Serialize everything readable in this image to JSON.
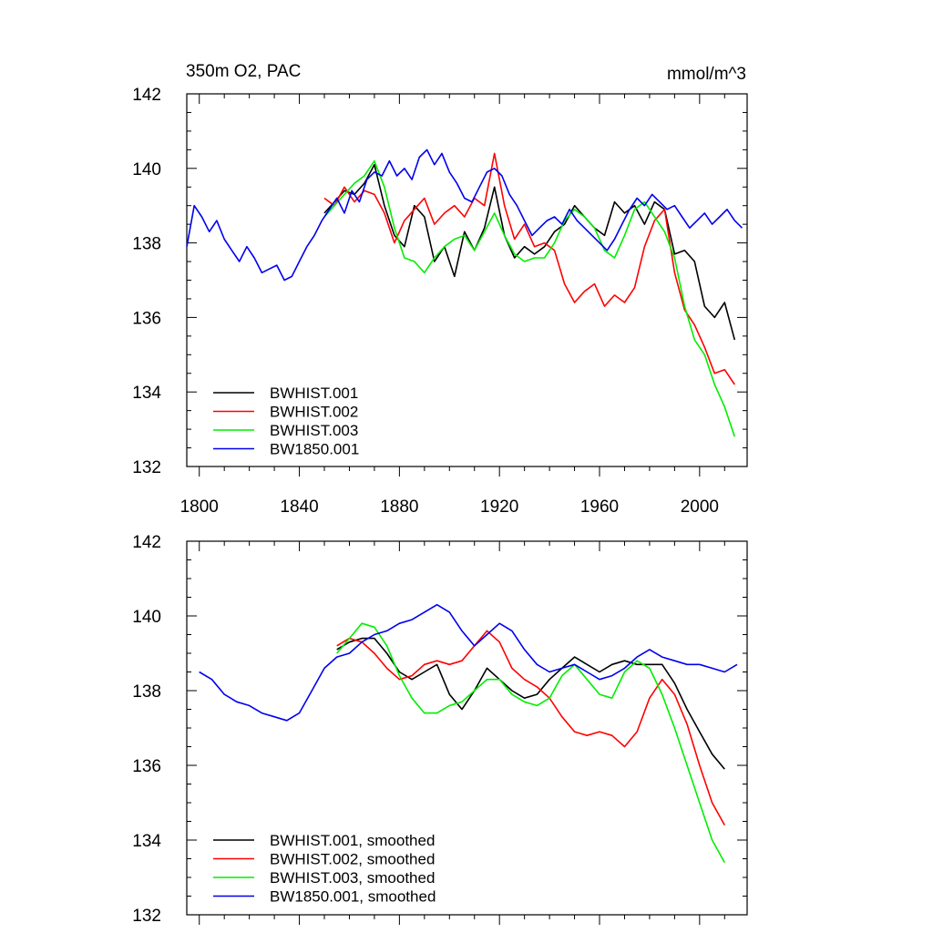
{
  "chart_data": [
    {
      "type": "line",
      "title": "350m O2, PAC",
      "units": "mmol/m^3",
      "xlim": [
        1795,
        2019
      ],
      "ylim": [
        132,
        142
      ],
      "xticks": [
        1800,
        1840,
        1880,
        1920,
        1960,
        2000
      ],
      "xtick_labels": [
        "1800",
        "1840",
        "1880",
        "1920",
        "1960",
        "2000"
      ],
      "yticks": [
        132,
        134,
        136,
        138,
        140,
        142
      ],
      "ytick_labels": [
        "132",
        "134",
        "136",
        "138",
        "140",
        "142"
      ],
      "legend_position": "bottom-left",
      "series": [
        {
          "name": "BWHIST.001",
          "color": "#000000",
          "x": [
            1850,
            1854,
            1858,
            1862,
            1866,
            1870,
            1874,
            1878,
            1882,
            1886,
            1890,
            1894,
            1898,
            1902,
            1906,
            1910,
            1914,
            1918,
            1922,
            1926,
            1930,
            1934,
            1938,
            1942,
            1946,
            1950,
            1954,
            1958,
            1962,
            1966,
            1970,
            1974,
            1978,
            1982,
            1986,
            1990,
            1994,
            1998,
            2002,
            2006,
            2010,
            2014
          ],
          "y": [
            138.8,
            139.1,
            139.4,
            139.3,
            139.6,
            140.1,
            139.0,
            138.2,
            137.9,
            139.0,
            138.7,
            137.5,
            137.9,
            137.1,
            138.3,
            137.8,
            138.4,
            139.5,
            138.2,
            137.6,
            137.9,
            137.7,
            137.9,
            138.3,
            138.5,
            139.0,
            138.7,
            138.4,
            138.2,
            139.1,
            138.8,
            139.0,
            138.5,
            139.1,
            138.9,
            137.7,
            137.8,
            137.5,
            136.3,
            136.0,
            136.4,
            135.4
          ]
        },
        {
          "name": "BWHIST.002",
          "color": "#ff0000",
          "x": [
            1850,
            1854,
            1858,
            1862,
            1866,
            1870,
            1874,
            1878,
            1882,
            1886,
            1890,
            1894,
            1898,
            1902,
            1906,
            1910,
            1914,
            1918,
            1922,
            1926,
            1930,
            1934,
            1938,
            1942,
            1946,
            1950,
            1954,
            1958,
            1962,
            1966,
            1970,
            1974,
            1978,
            1982,
            1986,
            1990,
            1994,
            1998,
            2002,
            2006,
            2010,
            2014
          ],
          "y": [
            139.2,
            139.0,
            139.5,
            139.1,
            139.4,
            139.3,
            138.8,
            138.0,
            138.6,
            138.9,
            139.2,
            138.5,
            138.8,
            139.0,
            138.7,
            139.2,
            139.0,
            140.4,
            139.0,
            138.1,
            138.5,
            137.9,
            138.0,
            137.8,
            136.9,
            136.4,
            136.7,
            136.9,
            136.3,
            136.6,
            136.4,
            136.8,
            137.9,
            138.6,
            138.9,
            137.2,
            136.2,
            135.8,
            135.2,
            134.5,
            134.6,
            134.2
          ]
        },
        {
          "name": "BWHIST.003",
          "color": "#00ee00",
          "x": [
            1850,
            1854,
            1858,
            1862,
            1866,
            1870,
            1874,
            1878,
            1882,
            1886,
            1890,
            1894,
            1898,
            1902,
            1906,
            1910,
            1914,
            1918,
            1922,
            1926,
            1930,
            1934,
            1938,
            1942,
            1946,
            1950,
            1954,
            1958,
            1962,
            1966,
            1970,
            1974,
            1978,
            1982,
            1986,
            1990,
            1994,
            1998,
            2002,
            2006,
            2010,
            2014
          ],
          "y": [
            138.7,
            139.0,
            139.3,
            139.6,
            139.8,
            140.2,
            139.5,
            138.4,
            137.6,
            137.5,
            137.2,
            137.6,
            137.9,
            138.1,
            138.2,
            137.8,
            138.3,
            138.8,
            138.2,
            137.7,
            137.5,
            137.6,
            137.6,
            138.0,
            138.6,
            138.9,
            138.7,
            138.4,
            137.8,
            137.6,
            138.2,
            138.9,
            139.1,
            138.7,
            138.3,
            137.6,
            136.3,
            135.4,
            135.0,
            134.2,
            133.6,
            132.8
          ]
        },
        {
          "name": "BW1850.001",
          "color": "#0000ee",
          "x": [
            1795,
            1798,
            1801,
            1804,
            1807,
            1810,
            1813,
            1816,
            1819,
            1822,
            1825,
            1828,
            1831,
            1834,
            1837,
            1840,
            1843,
            1846,
            1849,
            1852,
            1855,
            1858,
            1861,
            1864,
            1867,
            1870,
            1873,
            1876,
            1879,
            1882,
            1885,
            1888,
            1891,
            1894,
            1897,
            1900,
            1903,
            1906,
            1909,
            1912,
            1915,
            1918,
            1921,
            1924,
            1927,
            1930,
            1933,
            1936,
            1939,
            1942,
            1945,
            1948,
            1951,
            1954,
            1957,
            1960,
            1963,
            1966,
            1969,
            1972,
            1975,
            1978,
            1981,
            1984,
            1987,
            1990,
            1993,
            1996,
            1999,
            2002,
            2005,
            2008,
            2011,
            2014,
            2017
          ],
          "y": [
            137.9,
            139.0,
            138.7,
            138.3,
            138.6,
            138.1,
            137.8,
            137.5,
            137.9,
            137.6,
            137.2,
            137.3,
            137.4,
            137.0,
            137.1,
            137.5,
            137.9,
            138.2,
            138.6,
            138.9,
            139.2,
            138.8,
            139.4,
            139.1,
            139.7,
            139.9,
            139.8,
            140.2,
            139.8,
            140.0,
            139.7,
            140.3,
            140.5,
            140.1,
            140.4,
            139.9,
            139.6,
            139.2,
            139.1,
            139.5,
            139.9,
            140.0,
            139.8,
            139.3,
            139.0,
            138.6,
            138.2,
            138.4,
            138.6,
            138.7,
            138.5,
            138.9,
            138.6,
            138.4,
            138.2,
            138.0,
            137.8,
            138.1,
            138.5,
            138.9,
            139.2,
            139.0,
            139.3,
            139.1,
            138.9,
            139.0,
            138.7,
            138.4,
            138.6,
            138.8,
            138.5,
            138.7,
            138.9,
            138.6,
            138.4
          ]
        }
      ]
    },
    {
      "type": "line",
      "title": "",
      "units": "",
      "xlim": [
        1795,
        2019
      ],
      "ylim": [
        132,
        142
      ],
      "xticks": [
        1800,
        1840,
        1880,
        1920,
        1960,
        2000
      ],
      "xtick_labels": [],
      "yticks": [
        132,
        134,
        136,
        138,
        140,
        142
      ],
      "ytick_labels": [
        "132",
        "134",
        "136",
        "138",
        "140",
        "142"
      ],
      "legend_position": "bottom-left",
      "series": [
        {
          "name": "BWHIST.001, smoothed",
          "color": "#000000",
          "x": [
            1855,
            1860,
            1865,
            1870,
            1875,
            1880,
            1885,
            1890,
            1895,
            1900,
            1905,
            1910,
            1915,
            1920,
            1925,
            1930,
            1935,
            1940,
            1945,
            1950,
            1955,
            1960,
            1965,
            1970,
            1975,
            1980,
            1985,
            1990,
            1995,
            2000,
            2005,
            2010
          ],
          "y": [
            139.1,
            139.3,
            139.4,
            139.4,
            139.0,
            138.5,
            138.3,
            138.5,
            138.7,
            137.9,
            137.5,
            138.0,
            138.6,
            138.3,
            138.0,
            137.8,
            137.9,
            138.3,
            138.6,
            138.9,
            138.7,
            138.5,
            138.7,
            138.8,
            138.7,
            138.7,
            138.7,
            138.2,
            137.5,
            136.9,
            136.3,
            135.9
          ]
        },
        {
          "name": "BWHIST.002, smoothed",
          "color": "#ff0000",
          "x": [
            1855,
            1860,
            1865,
            1870,
            1875,
            1880,
            1885,
            1890,
            1895,
            1900,
            1905,
            1910,
            1915,
            1920,
            1925,
            1930,
            1935,
            1940,
            1945,
            1950,
            1955,
            1960,
            1965,
            1970,
            1975,
            1980,
            1985,
            1990,
            1995,
            2000,
            2005,
            2010
          ],
          "y": [
            139.2,
            139.4,
            139.3,
            139.0,
            138.6,
            138.3,
            138.4,
            138.7,
            138.8,
            138.7,
            138.8,
            139.2,
            139.6,
            139.3,
            138.6,
            138.3,
            138.1,
            137.8,
            137.3,
            136.9,
            136.8,
            136.9,
            136.8,
            136.5,
            136.9,
            137.8,
            138.3,
            137.9,
            137.1,
            136.0,
            135.0,
            134.4
          ]
        },
        {
          "name": "BWHIST.003, smoothed",
          "color": "#00ee00",
          "x": [
            1855,
            1860,
            1865,
            1870,
            1875,
            1880,
            1885,
            1890,
            1895,
            1900,
            1905,
            1910,
            1915,
            1920,
            1925,
            1930,
            1935,
            1940,
            1945,
            1950,
            1955,
            1960,
            1965,
            1970,
            1975,
            1980,
            1985,
            1990,
            1995,
            2000,
            2005,
            2010
          ],
          "y": [
            139.0,
            139.4,
            139.8,
            139.7,
            139.2,
            138.4,
            137.8,
            137.4,
            137.4,
            137.6,
            137.7,
            138.0,
            138.3,
            138.3,
            137.9,
            137.7,
            137.6,
            137.8,
            138.4,
            138.7,
            138.3,
            137.9,
            137.8,
            138.5,
            138.8,
            138.6,
            137.9,
            137.0,
            136.0,
            135.0,
            134.0,
            133.4
          ]
        },
        {
          "name": "BW1850.001, smoothed",
          "color": "#0000ee",
          "x": [
            1800,
            1805,
            1810,
            1815,
            1820,
            1825,
            1830,
            1835,
            1840,
            1845,
            1850,
            1855,
            1860,
            1865,
            1870,
            1875,
            1880,
            1885,
            1890,
            1895,
            1900,
            1905,
            1910,
            1915,
            1920,
            1925,
            1930,
            1935,
            1940,
            1945,
            1950,
            1955,
            1960,
            1965,
            1970,
            1975,
            1980,
            1985,
            1990,
            1995,
            2000,
            2005,
            2010,
            2015
          ],
          "y": [
            138.5,
            138.3,
            137.9,
            137.7,
            137.6,
            137.4,
            137.3,
            137.2,
            137.4,
            138.0,
            138.6,
            138.9,
            139.0,
            139.3,
            139.5,
            139.6,
            139.8,
            139.9,
            140.1,
            140.3,
            140.1,
            139.6,
            139.2,
            139.5,
            139.8,
            139.6,
            139.1,
            138.7,
            138.5,
            138.6,
            138.7,
            138.5,
            138.3,
            138.4,
            138.6,
            138.9,
            139.1,
            138.9,
            138.8,
            138.7,
            138.7,
            138.6,
            138.5,
            138.7
          ]
        }
      ]
    }
  ]
}
